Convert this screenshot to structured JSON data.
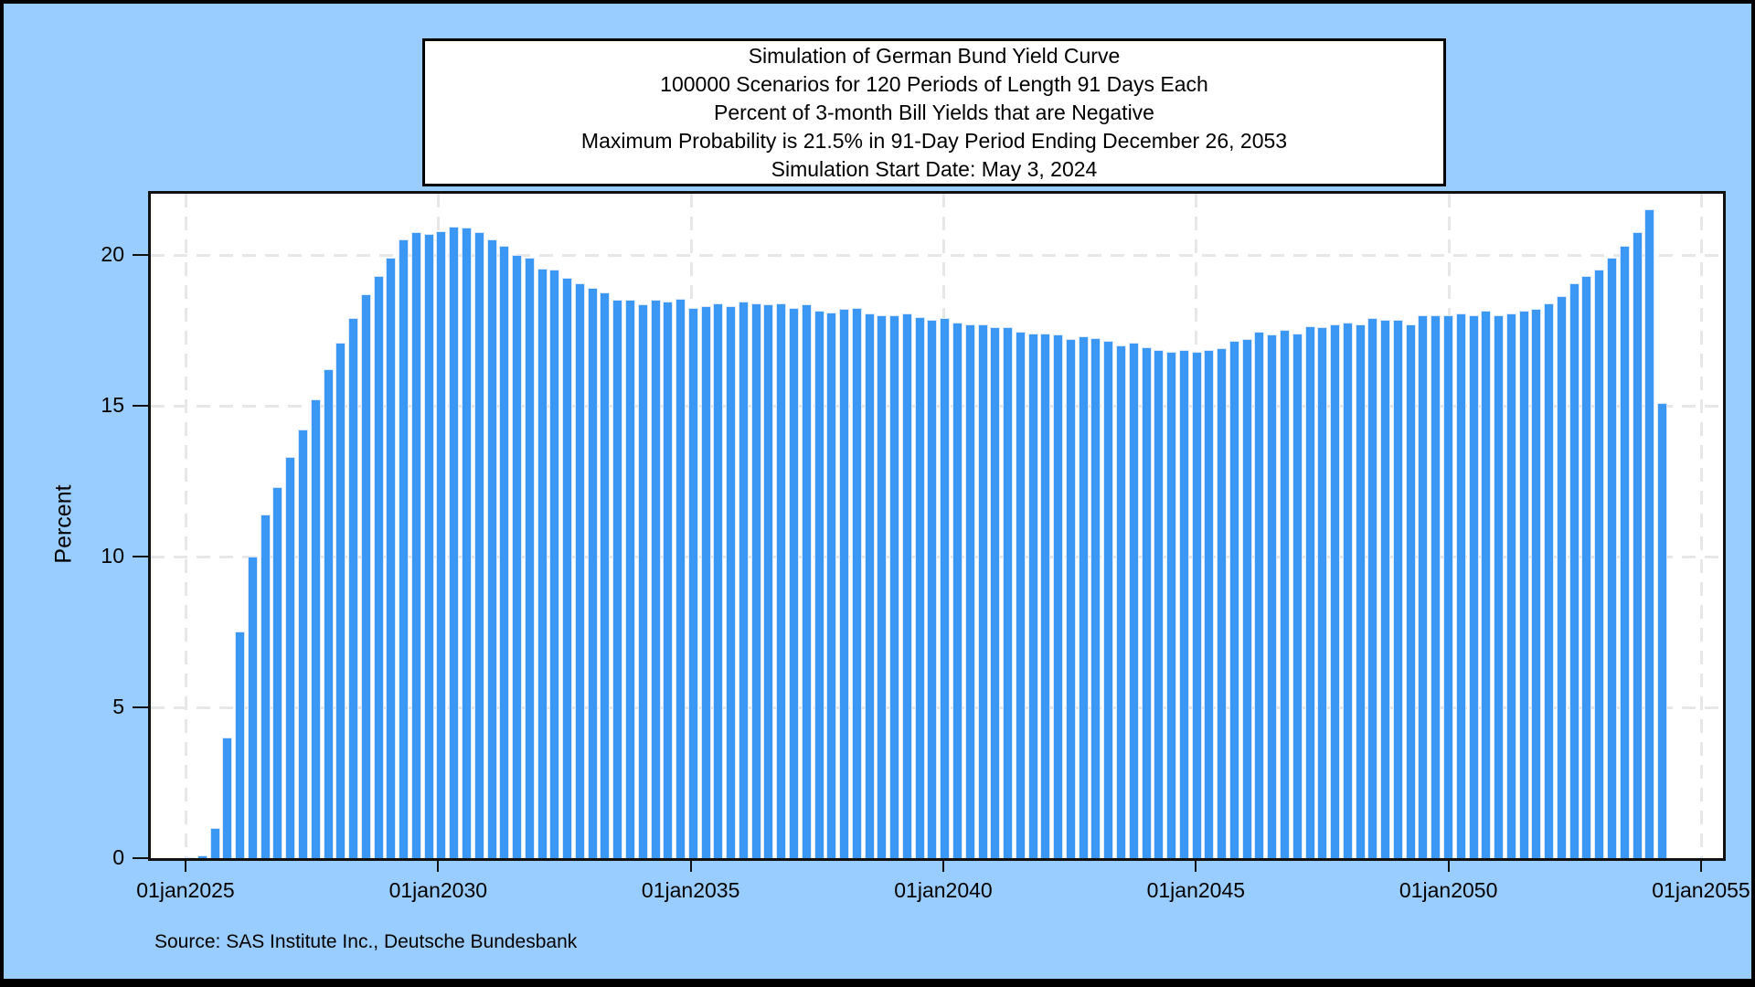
{
  "title_box": {
    "lines": [
      "Simulation of German Bund Yield Curve",
      "100000 Scenarios for 120 Periods of Length 91 Days Each",
      "Percent of 3-month Bill Yields that are Negative",
      "Maximum Probability is 21.5% in 91-Day Period Ending December 26, 2053",
      "Simulation Start Date: May 3, 2024"
    ]
  },
  "source_note": "Source: SAS Institute Inc., Deutsche Bundesbank",
  "colors": {
    "page_background": "#99CCFF",
    "plot_background": "#FFFFFF",
    "bar_fill": "#3B97F4",
    "bar_outline": "#D8E7FA",
    "gridline": "#E7E7E7",
    "axis": "#111111",
    "frame_border": "#000000"
  },
  "chart_data": {
    "type": "bar",
    "title": "Simulation of German Bund Yield Curve",
    "subtitle": "Percent of 3-month Bill Yields that are Negative",
    "ylabel": "Percent",
    "xlabel": "",
    "ylim": [
      0,
      22
    ],
    "yticks": [
      0,
      5,
      10,
      15,
      20
    ],
    "xtick_labels": [
      "01jan2025",
      "01jan2030",
      "01jan2035",
      "01jan2040",
      "01jan2045",
      "01jan2050",
      "01jan2055"
    ],
    "grid": "dashed horizontal and vertical at major ticks",
    "legend": "none",
    "simulation": {
      "scenarios": 100000,
      "periods": 120,
      "period_length_days": 91,
      "start_date": "May 3, 2024",
      "max_probability_pct": 21.5,
      "max_period_ending": "December 26, 2053"
    },
    "x_meaning": "end date of each successive 91-day period, period index 1-120",
    "values": [
      0,
      0,
      0.03,
      0.1,
      1.0,
      4.0,
      7.5,
      10.0,
      11.4,
      12.3,
      13.3,
      14.2,
      15.2,
      16.2,
      17.1,
      17.9,
      18.7,
      19.3,
      19.9,
      20.5,
      20.75,
      20.7,
      20.8,
      20.95,
      20.9,
      20.75,
      20.5,
      20.3,
      20.0,
      19.9,
      19.55,
      19.5,
      19.25,
      19.05,
      18.9,
      18.75,
      18.5,
      18.5,
      18.35,
      18.5,
      18.45,
      18.55,
      18.25,
      18.3,
      18.4,
      18.3,
      18.45,
      18.4,
      18.35,
      18.4,
      18.25,
      18.35,
      18.15,
      18.1,
      18.2,
      18.25,
      18.05,
      18.0,
      18.0,
      18.05,
      17.95,
      17.85,
      17.9,
      17.75,
      17.7,
      17.7,
      17.6,
      17.6,
      17.45,
      17.4,
      17.4,
      17.35,
      17.2,
      17.3,
      17.25,
      17.15,
      17.0,
      17.1,
      16.95,
      16.85,
      16.8,
      16.85,
      16.8,
      16.85,
      16.9,
      17.15,
      17.2,
      17.45,
      17.35,
      17.5,
      17.4,
      17.65,
      17.6,
      17.7,
      17.75,
      17.7,
      17.9,
      17.85,
      17.85,
      17.7,
      18.0,
      18.0,
      18.0,
      18.05,
      18.0,
      18.15,
      18.0,
      18.05,
      18.15,
      18.2,
      18.4,
      18.65,
      19.05,
      19.3,
      19.5,
      19.9,
      20.3,
      20.75,
      21.5,
      15.1
    ]
  }
}
